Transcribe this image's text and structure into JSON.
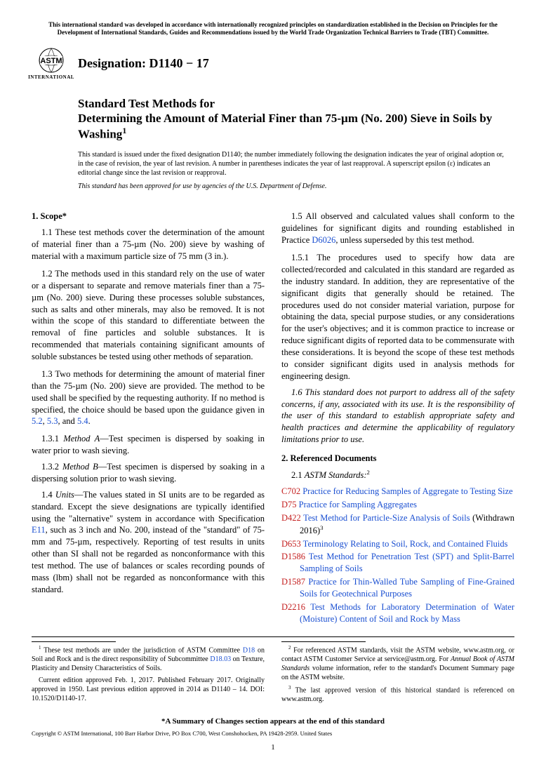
{
  "topNotice": "This international standard was developed in accordance with internationally recognized principles on standardization established in the Decision on Principles for the Development of International Standards, Guides and Recommendations issued by the World Trade Organization Technical Barriers to Trade (TBT) Committee.",
  "logoSub": "INTERNATIONAL",
  "designation": "Designation: D1140 − 17",
  "titleLine1": "Standard Test Methods for",
  "titleLine2": "Determining the Amount of Material Finer than 75-µm (No. 200) Sieve in Soils by Washing",
  "titleSup": "1",
  "issueNote": "This standard is issued under the fixed designation D1140; the number immediately following the designation indicates the year of original adoption or, in the case of revision, the year of last revision. A number in parentheses indicates the year of last reapproval. A superscript epsilon (ε) indicates an editorial change since the last revision or reapproval.",
  "dodNote": "This standard has been approved for use by agencies of the U.S. Department of Defense.",
  "scopeHead": "1. Scope*",
  "p11": "1.1 These test methods cover the determination of the amount of material finer than a 75-µm (No. 200) sieve by washing of material with a maximum particle size of 75 mm (3 in.).",
  "p12": "1.2 The methods used in this standard rely on the use of water or a dispersant to separate and remove materials finer than a 75-µm (No. 200) sieve. During these processes soluble substances, such as salts and other minerals, may also be removed. It is not within the scope of this standard to differentiate between the removal of fine particles and soluble substances. It is recommended that materials containing significant amounts of soluble substances be tested using other methods of separation.",
  "p13a": "1.3 Two methods for determining the amount of material finer than the 75-µm (No. 200) sieve are provided. The method to be used shall be specified by the requesting authority. If no method is specified, the choice should be based upon the guidance given in ",
  "p13links": {
    "l1": "5.2",
    "c1": ", ",
    "l2": "5.3",
    "c2": ", and ",
    "l3": "5.4",
    "end": "."
  },
  "p131": "1.3.1 Method A—Test specimen is dispersed by soaking in water prior to wash sieving.",
  "p132": "1.3.2 Method B—Test specimen is dispersed by soaking in a dispersing solution prior to wash sieving.",
  "p14a": "1.4 Units—The values stated in SI units are to be regarded as standard. Except the sieve designations are typically identified using the \"alternative\" system in accordance with Specification ",
  "p14link": "E11",
  "p14b": ", such as 3 inch and No. 200, instead of the \"standard\" of 75-mm and 75-µm, respectively. Reporting of test results in units other than SI shall not be regarded as nonconformance with this test method. The use of balances or scales recording pounds of mass (lbm) shall not be regarded as nonconformance with this standard.",
  "p15a": "1.5 All observed and calculated values shall conform to the guidelines for significant digits and rounding established in Practice ",
  "p15link": "D6026",
  "p15b": ", unless superseded by this test method.",
  "p151": "1.5.1 The procedures used to specify how data are collected/recorded and calculated in this standard are regarded as the industry standard. In addition, they are representative of the significant digits that generally should be retained. The procedures used do not consider material variation, purpose for obtaining the data, special purpose studies, or any considerations for the user's objectives; and it is common practice to increase or reduce significant digits of reported data to be commensurate with these considerations. It is beyond the scope of these test methods to consider significant digits used in analysis methods for engineering design.",
  "p16": "1.6 This standard does not purport to address all of the safety concerns, if any, associated with its use. It is the responsibility of the user of this standard to establish appropriate safety and health practices and determine the applicability of regulatory limitations prior to use.",
  "refHead": "2. Referenced Documents",
  "refSub": "2.1 ASTM Standards:",
  "refSup": "2",
  "refs": [
    {
      "code": "C702",
      "title": "Practice for Reducing Samples of Aggregate to Testing Size"
    },
    {
      "code": "D75",
      "title": "Practice for Sampling Aggregates"
    },
    {
      "code": "D422",
      "title": "Test Method for Particle-Size Analysis of Soils",
      "suffix": " (Withdrawn 2016)",
      "sup": "3"
    },
    {
      "code": "D653",
      "title": "Terminology Relating to Soil, Rock, and Contained Fluids"
    },
    {
      "code": "D1586",
      "title": "Test Method for Penetration Test (SPT) and Split-Barrel Sampling of Soils"
    },
    {
      "code": "D1587",
      "title": "Practice for Thin-Walled Tube Sampling of Fine-Grained Soils for Geotechnical Purposes"
    },
    {
      "code": "D2216",
      "title": "Test Methods for Laboratory Determination of Water (Moisture) Content of Soil and Rock by Mass"
    }
  ],
  "fn1a": "These test methods are under the jurisdiction of ASTM Committee ",
  "fn1l1": "D18",
  "fn1b": " on Soil and Rock and is the direct responsibility of Subcommittee ",
  "fn1l2": "D18.03",
  "fn1c": " on Texture, Plasticity and Density Characteristics of Soils.",
  "fn1d": "Current edition approved Feb. 1, 2017. Published February 2017. Originally approved in 1950. Last previous edition approved in 2014 as D1140 – 14. DOI: 10.1520/D1140-17.",
  "fn2a": "For referenced ASTM standards, visit the ASTM website, www.astm.org, or contact ASTM Customer Service at service@astm.org. For ",
  "fn2it": "Annual Book of ASTM Standards",
  "fn2b": " volume information, refer to the standard's Document Summary page on the ASTM website.",
  "fn3": "The last approved version of this historical standard is referenced on www.astm.org.",
  "summaryLine": "*A Summary of Changes section appears at the end of this standard",
  "copyright": "Copyright © ASTM International, 100 Barr Harbor Drive, PO Box C700, West Conshohocken, PA 19428-2959. United States",
  "pageNum": "1"
}
